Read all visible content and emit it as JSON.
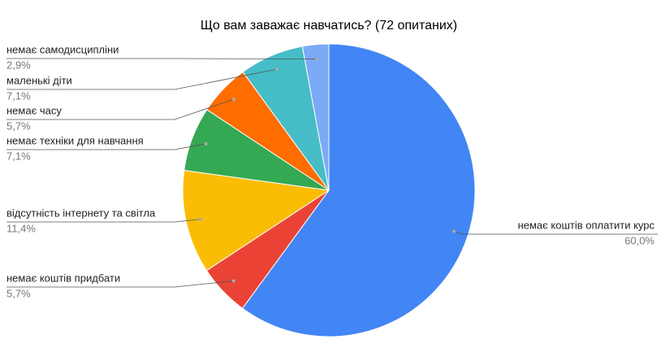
{
  "chart_data": {
    "type": "pie",
    "title": "Що вам заважає навчатись? (72 опитаних)",
    "categories": [
      "немає коштів оплатити курс",
      "немає коштів придбати",
      "відсутність інтернету та світла",
      "немає техніки для навчання",
      "немає часу",
      "маленькі діти",
      "немає самодисципліни"
    ],
    "values": [
      60.0,
      5.7,
      11.4,
      7.1,
      5.7,
      7.1,
      2.9
    ],
    "value_labels": [
      "60,0%",
      "5,7%",
      "11,4%",
      "7,1%",
      "5,7%",
      "7,1%",
      "2,9%"
    ],
    "colors": [
      "#4285f4",
      "#ea4335",
      "#fbbc04",
      "#34a853",
      "#ff6d01",
      "#46bdc6",
      "#7baaf7"
    ]
  }
}
